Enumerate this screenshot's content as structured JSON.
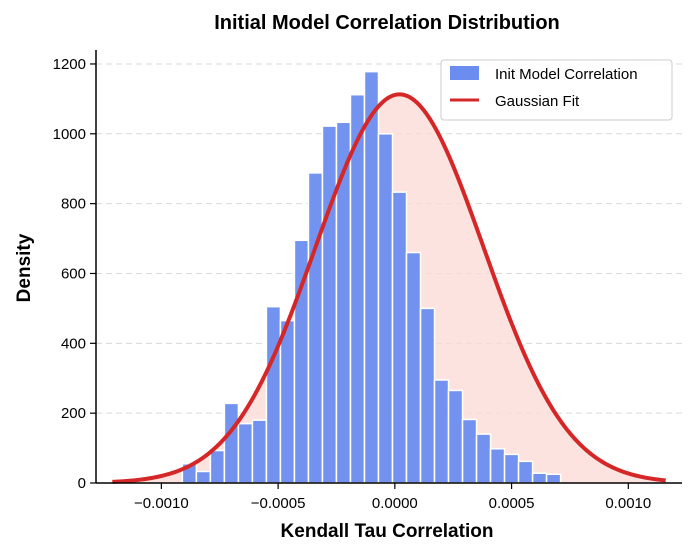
{
  "chart_data": {
    "type": "bar",
    "title": "Initial Model Correlation Distribution",
    "xlabel": "Kendall Tau Correlation",
    "ylabel": "Density",
    "xlim": [
      -0.00128,
      0.00123
    ],
    "ylim": [
      0,
      1240
    ],
    "x_ticks": [
      -0.001,
      -0.0005,
      0.0,
      0.0005,
      0.001
    ],
    "x_tick_labels": [
      "−0.0010",
      "−0.0005",
      "0.0000",
      "0.0005",
      "0.0010"
    ],
    "y_ticks": [
      0,
      200,
      400,
      600,
      800,
      1000,
      1200
    ],
    "y_tick_labels": [
      "0",
      "200",
      "400",
      "600",
      "800",
      "1000",
      "1200"
    ],
    "grid": "y-dashed",
    "legend_position": "top-right",
    "histogram": {
      "name": "Init Model Correlation",
      "bin_edges": [
        -0.00097,
        -0.00091,
        -0.00085,
        -0.00079,
        -0.00073,
        -0.00067,
        -0.00061,
        -0.00055,
        -0.00049,
        -0.00043,
        -0.00037,
        -0.00031,
        -0.00025,
        -0.00019,
        -0.00013,
        -7e-05,
        -1e-05,
        5e-05,
        0.00011,
        0.00017,
        0.00023,
        0.00029,
        0.00035,
        0.00041,
        0.00047,
        0.00053,
        0.00059,
        0.00065,
        0.00071,
        0.00077,
        0.00083,
        0.00089,
        0.00095,
        0.00101,
        0.00107,
        0.00113,
        0.00119
      ],
      "values": [
        0,
        55,
        33,
        93,
        228,
        170,
        180,
        505,
        465,
        695,
        888,
        1022,
        1033,
        1112,
        1178,
        1000,
        833,
        660,
        500,
        295,
        265,
        182,
        140,
        98,
        82,
        62,
        28,
        25,
        0,
        0,
        0,
        0,
        0,
        0,
        0,
        0
      ],
      "color": "#6b8def"
    },
    "gaussian_fit": {
      "name": "Gaussian Fit",
      "mean": 2e-05,
      "std": 0.00036,
      "peak": 1113,
      "x_range": [
        -0.00121,
        0.00116
      ],
      "color": "#d62728"
    }
  }
}
